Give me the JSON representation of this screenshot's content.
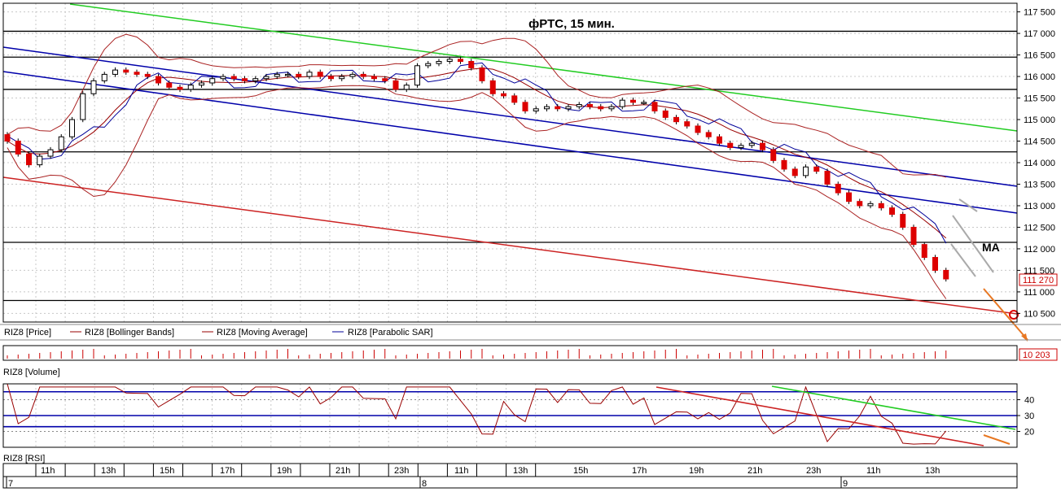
{
  "chart_data": {
    "type": "candlestick",
    "title": "фРТС, 15 мин.",
    "instrument": "RIZ8",
    "last_price": "111 270",
    "price_axis": {
      "ticks": [
        "117 500",
        "117 000",
        "116 500",
        "116 000",
        "115 500",
        "115 000",
        "114 500",
        "114 000",
        "113 500",
        "113 000",
        "112 500",
        "112 000",
        "111 500",
        "111 000",
        "110 500"
      ],
      "range": [
        110300,
        117700
      ]
    },
    "legend": [
      {
        "label": "RIZ8 [Price]",
        "color": "#cc0000"
      },
      {
        "label": "RIZ8 [Bollinger Bands]",
        "color": "#990000"
      },
      {
        "label": "RIZ8 [Moving Average]",
        "color": "#990000"
      },
      {
        "label": "RIZ8 [Parabolic SAR]",
        "color": "#000099"
      }
    ],
    "annotation_ma": "MA",
    "horizontal_levels": [
      117050,
      116450,
      115700,
      114250,
      112150,
      110800
    ],
    "volume": {
      "label": "RIZ8 [Volume]",
      "last": "10 203",
      "axis_zero": "0"
    },
    "rsi": {
      "label": "RIZ8 [RSI]",
      "ticks": [
        "40",
        "30",
        "20"
      ],
      "levels": [
        45,
        30,
        23,
        40,
        20
      ]
    },
    "time_axis": {
      "hours": [
        "11h",
        "13h",
        "15h",
        "17h",
        "19h",
        "21h",
        "23h",
        "11h",
        "13h",
        "15h",
        "17h",
        "19h",
        "21h",
        "23h",
        "11h",
        "13h"
      ],
      "days": [
        "7",
        "8",
        "9"
      ]
    },
    "colors": {
      "bull": "#ffffff",
      "bear": "#dd0000",
      "green_line": "#22cc22",
      "blue_line": "#0000aa",
      "red_line": "#cc2222",
      "orange": "#e87722"
    },
    "close_series": [
      114500,
      114200,
      113950,
      114150,
      114300,
      114600,
      115000,
      115600,
      115900,
      116050,
      116150,
      116100,
      116050,
      116000,
      115850,
      115750,
      115700,
      115800,
      115850,
      115950,
      116000,
      115950,
      115900,
      115950,
      116000,
      116050,
      116050,
      116000,
      116100,
      116000,
      115950,
      116000,
      116050,
      116000,
      115950,
      115900,
      115700,
      115800,
      116250,
      116300,
      116350,
      116400,
      116350,
      116200,
      115900,
      115600,
      115550,
      115400,
      115200,
      115250,
      115300,
      115250,
      115300,
      115350,
      115300,
      115250,
      115300,
      115450,
      115400,
      115400,
      115200,
      115050,
      114950,
      114850,
      114700,
      114600,
      114450,
      114350,
      114400,
      114450,
      114300,
      114050,
      113850,
      113700,
      113900,
      113800,
      113500,
      113300,
      113100,
      113000,
      113050,
      112950,
      112800,
      112500,
      112100,
      111800,
      111500,
      111300
    ]
  }
}
